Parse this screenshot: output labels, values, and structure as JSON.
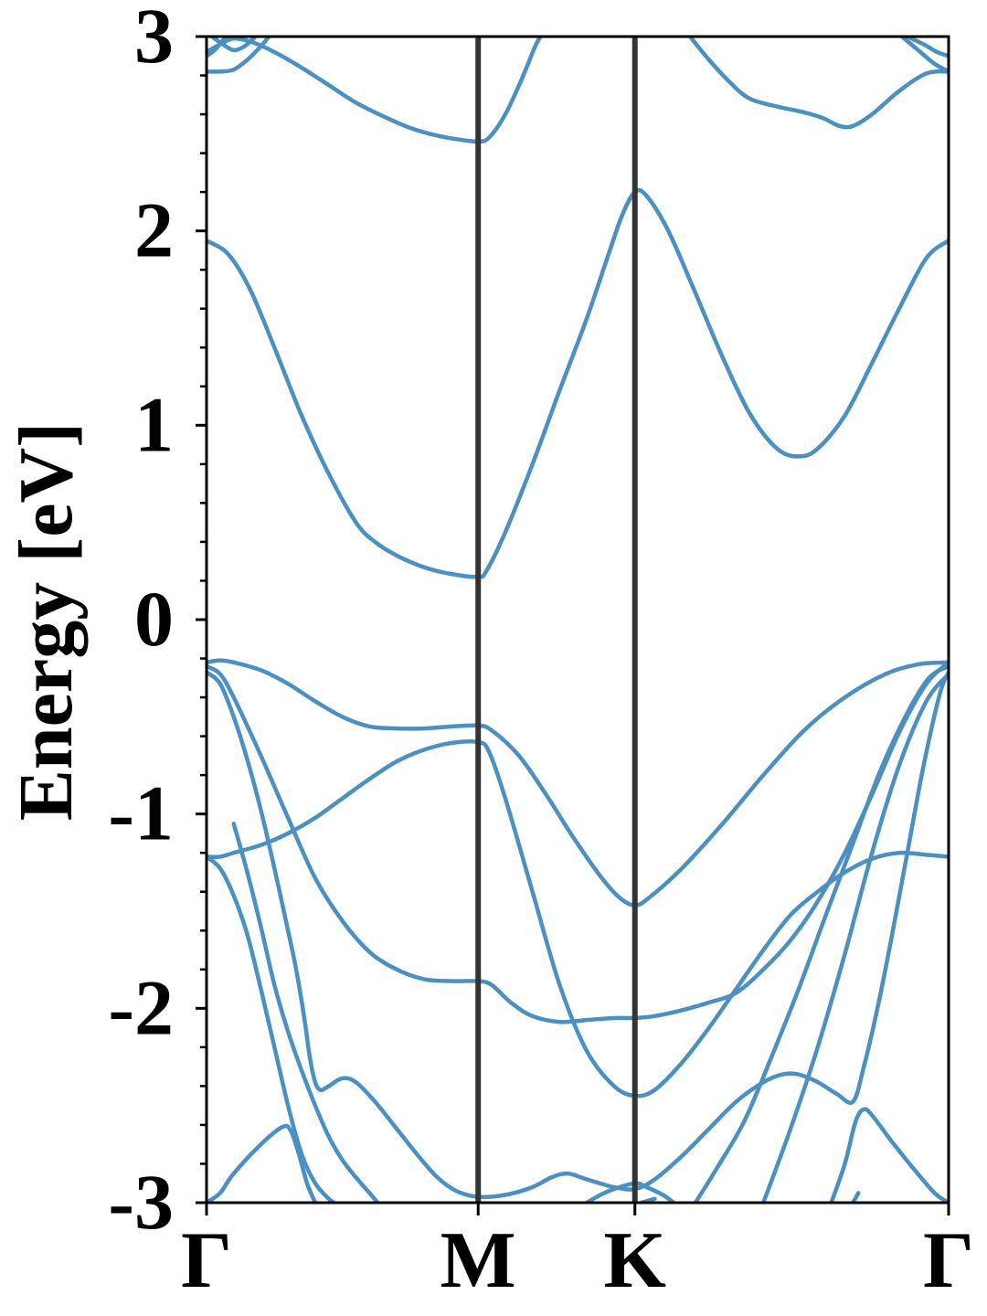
{
  "chart_data": {
    "type": "line",
    "title": "",
    "xlabel": "",
    "ylabel": "Energy [eV]",
    "ylim": [
      -3,
      3
    ],
    "xlim": [
      0,
      2.732
    ],
    "y_ticks": [
      -3,
      -2,
      -1,
      0,
      1,
      2,
      3
    ],
    "y_tick_labels": [
      "-3",
      "-2",
      "-1",
      "0",
      "1",
      "2",
      "3"
    ],
    "y_minor_step": 0.2,
    "grid": false,
    "legend": "none",
    "high_symmetry_points": [
      {
        "label": "Γ",
        "x": 0
      },
      {
        "label": "M",
        "x": 1.0
      },
      {
        "label": "K",
        "x": 1.577
      },
      {
        "label": "Γ",
        "x": 2.732
      }
    ],
    "band_color": "#4a90c2",
    "divider_color": "#333333",
    "series": [
      {
        "values": [
          [
            0,
            1.95
          ],
          [
            0.08,
            1.88
          ],
          [
            0.16,
            1.7
          ],
          [
            0.25,
            1.4
          ],
          [
            0.35,
            1.05
          ],
          [
            0.45,
            0.75
          ],
          [
            0.55,
            0.5
          ],
          [
            0.62,
            0.4
          ],
          [
            0.7,
            0.33
          ],
          [
            0.8,
            0.27
          ],
          [
            0.9,
            0.235
          ],
          [
            1.0,
            0.22
          ],
          [
            1.03,
            0.25
          ],
          [
            1.1,
            0.45
          ],
          [
            1.2,
            0.8
          ],
          [
            1.3,
            1.18
          ],
          [
            1.4,
            1.55
          ],
          [
            1.48,
            1.88
          ],
          [
            1.53,
            2.08
          ],
          [
            1.577,
            2.2
          ],
          [
            1.62,
            2.18
          ],
          [
            1.7,
            2.0
          ],
          [
            1.8,
            1.68
          ],
          [
            1.9,
            1.35
          ],
          [
            2.0,
            1.06
          ],
          [
            2.1,
            0.88
          ],
          [
            2.18,
            0.84
          ],
          [
            2.25,
            0.88
          ],
          [
            2.35,
            1.05
          ],
          [
            2.45,
            1.32
          ],
          [
            2.55,
            1.6
          ],
          [
            2.65,
            1.86
          ],
          [
            2.732,
            1.95
          ]
        ]
      },
      {
        "values": [
          [
            0,
            2.92
          ],
          [
            0.05,
            2.96
          ],
          [
            0.1,
            2.99
          ],
          [
            0.17,
            2.97
          ],
          [
            0.25,
            2.92
          ],
          [
            0.35,
            2.84
          ],
          [
            0.45,
            2.75
          ],
          [
            0.55,
            2.66
          ],
          [
            0.65,
            2.59
          ],
          [
            0.75,
            2.53
          ],
          [
            0.85,
            2.49
          ],
          [
            0.93,
            2.47
          ],
          [
            1.0,
            2.46
          ],
          [
            1.04,
            2.48
          ],
          [
            1.1,
            2.6
          ],
          [
            1.16,
            2.78
          ],
          [
            1.21,
            2.95
          ],
          [
            1.23,
            3.0
          ]
        ]
      },
      {
        "values": [
          [
            0,
            2.82
          ],
          [
            0.05,
            2.82
          ],
          [
            0.1,
            2.83
          ],
          [
            0.15,
            2.88
          ],
          [
            0.2,
            2.95
          ],
          [
            0.23,
            3.0
          ]
        ]
      },
      {
        "values": [
          [
            0.02,
            3.0
          ],
          [
            0.06,
            2.96
          ],
          [
            0.1,
            2.93
          ],
          [
            0.14,
            2.95
          ],
          [
            0.18,
            3.0
          ]
        ]
      },
      {
        "values": [
          [
            0,
            2.9
          ],
          [
            0.03,
            2.93
          ],
          [
            0.06,
            2.98
          ],
          [
            0.08,
            3.0
          ]
        ]
      },
      {
        "values": [
          [
            1.78,
            3.0
          ],
          [
            1.85,
            2.88
          ],
          [
            1.93,
            2.76
          ],
          [
            2.0,
            2.68
          ],
          [
            2.1,
            2.64
          ],
          [
            2.2,
            2.61
          ],
          [
            2.27,
            2.58
          ],
          [
            2.33,
            2.54
          ],
          [
            2.38,
            2.54
          ],
          [
            2.45,
            2.6
          ],
          [
            2.55,
            2.72
          ],
          [
            2.65,
            2.81
          ],
          [
            2.732,
            2.82
          ]
        ]
      },
      {
        "values": [
          [
            2.58,
            3.0
          ],
          [
            2.64,
            2.96
          ],
          [
            2.69,
            2.92
          ],
          [
            2.732,
            2.9
          ]
        ]
      },
      {
        "values": [
          [
            2.56,
            3.0
          ],
          [
            2.62,
            2.93
          ],
          [
            2.68,
            2.86
          ],
          [
            2.732,
            2.82
          ]
        ]
      },
      {
        "values": [
          [
            0,
            -0.22
          ],
          [
            0.05,
            -0.21
          ],
          [
            0.1,
            -0.22
          ],
          [
            0.2,
            -0.26
          ],
          [
            0.3,
            -0.33
          ],
          [
            0.4,
            -0.42
          ],
          [
            0.5,
            -0.5
          ],
          [
            0.6,
            -0.55
          ],
          [
            0.7,
            -0.56
          ],
          [
            0.8,
            -0.56
          ],
          [
            0.9,
            -0.55
          ],
          [
            1.0,
            -0.545
          ],
          [
            1.05,
            -0.57
          ],
          [
            1.15,
            -0.7
          ],
          [
            1.25,
            -0.9
          ],
          [
            1.35,
            -1.12
          ],
          [
            1.45,
            -1.32
          ],
          [
            1.52,
            -1.43
          ],
          [
            1.577,
            -1.47
          ],
          [
            1.63,
            -1.43
          ],
          [
            1.75,
            -1.28
          ],
          [
            1.9,
            -1.05
          ],
          [
            2.05,
            -0.8
          ],
          [
            2.2,
            -0.57
          ],
          [
            2.35,
            -0.4
          ],
          [
            2.5,
            -0.28
          ],
          [
            2.62,
            -0.23
          ],
          [
            2.732,
            -0.22
          ]
        ]
      },
      {
        "values": [
          [
            0,
            -1.22
          ],
          [
            0.05,
            -1.22
          ],
          [
            0.1,
            -1.2
          ],
          [
            0.2,
            -1.16
          ],
          [
            0.3,
            -1.1
          ],
          [
            0.4,
            -1.02
          ],
          [
            0.5,
            -0.92
          ],
          [
            0.6,
            -0.82
          ],
          [
            0.7,
            -0.73
          ],
          [
            0.8,
            -0.67
          ],
          [
            0.9,
            -0.635
          ],
          [
            1.0,
            -0.63
          ],
          [
            1.04,
            -0.68
          ],
          [
            1.1,
            -0.92
          ],
          [
            1.2,
            -1.4
          ],
          [
            1.3,
            -1.88
          ],
          [
            1.4,
            -2.22
          ],
          [
            1.5,
            -2.4
          ],
          [
            1.577,
            -2.45
          ],
          [
            1.65,
            -2.42
          ],
          [
            1.75,
            -2.28
          ],
          [
            1.85,
            -2.1
          ],
          [
            1.95,
            -1.9
          ],
          [
            2.05,
            -1.7
          ],
          [
            2.15,
            -1.52
          ],
          [
            2.25,
            -1.4
          ],
          [
            2.35,
            -1.3
          ],
          [
            2.45,
            -1.23
          ],
          [
            2.55,
            -1.2
          ],
          [
            2.65,
            -1.21
          ],
          [
            2.732,
            -1.22
          ]
        ]
      },
      {
        "values": [
          [
            0,
            -0.24
          ],
          [
            0.05,
            -0.28
          ],
          [
            0.1,
            -0.4
          ],
          [
            0.2,
            -0.7
          ],
          [
            0.3,
            -1.02
          ],
          [
            0.4,
            -1.33
          ],
          [
            0.5,
            -1.55
          ],
          [
            0.6,
            -1.71
          ],
          [
            0.7,
            -1.8
          ],
          [
            0.8,
            -1.85
          ],
          [
            0.9,
            -1.86
          ],
          [
            1.0,
            -1.86
          ],
          [
            1.05,
            -1.88
          ],
          [
            1.12,
            -1.97
          ],
          [
            1.2,
            -2.04
          ],
          [
            1.3,
            -2.07
          ],
          [
            1.4,
            -2.06
          ],
          [
            1.5,
            -2.05
          ],
          [
            1.577,
            -2.05
          ],
          [
            1.65,
            -2.04
          ],
          [
            1.75,
            -2.01
          ],
          [
            1.85,
            -1.97
          ],
          [
            1.95,
            -1.92
          ],
          [
            2.05,
            -1.8
          ],
          [
            2.15,
            -1.65
          ],
          [
            2.25,
            -1.45
          ],
          [
            2.35,
            -1.2
          ],
          [
            2.45,
            -0.9
          ],
          [
            2.55,
            -0.58
          ],
          [
            2.65,
            -0.33
          ],
          [
            2.732,
            -0.22
          ]
        ]
      },
      {
        "values": [
          [
            0,
            -0.27
          ],
          [
            0.05,
            -0.33
          ],
          [
            0.1,
            -0.5
          ],
          [
            0.15,
            -0.72
          ],
          [
            0.2,
            -0.98
          ],
          [
            0.25,
            -1.28
          ],
          [
            0.3,
            -1.6
          ],
          [
            0.33,
            -1.8
          ],
          [
            0.36,
            -2.05
          ],
          [
            0.38,
            -2.25
          ],
          [
            0.4,
            -2.38
          ],
          [
            0.42,
            -2.42
          ],
          [
            0.45,
            -2.4
          ],
          [
            0.5,
            -2.36
          ],
          [
            0.55,
            -2.38
          ],
          [
            0.62,
            -2.48
          ],
          [
            0.7,
            -2.62
          ],
          [
            0.78,
            -2.76
          ],
          [
            0.85,
            -2.87
          ],
          [
            0.92,
            -2.94
          ],
          [
            1.0,
            -2.97
          ],
          [
            1.1,
            -2.96
          ],
          [
            1.2,
            -2.92
          ],
          [
            1.27,
            -2.87
          ],
          [
            1.33,
            -2.85
          ],
          [
            1.4,
            -2.88
          ],
          [
            1.5,
            -2.92
          ],
          [
            1.577,
            -2.93
          ],
          [
            1.65,
            -2.88
          ],
          [
            1.75,
            -2.76
          ],
          [
            1.85,
            -2.62
          ],
          [
            1.95,
            -2.48
          ],
          [
            2.05,
            -2.38
          ],
          [
            2.12,
            -2.34
          ],
          [
            2.18,
            -2.34
          ],
          [
            2.25,
            -2.38
          ],
          [
            2.32,
            -2.44
          ],
          [
            2.38,
            -2.48
          ],
          [
            2.42,
            -2.3
          ],
          [
            2.47,
            -2.0
          ],
          [
            2.52,
            -1.65
          ],
          [
            2.58,
            -1.2
          ],
          [
            2.64,
            -0.75
          ],
          [
            2.7,
            -0.38
          ],
          [
            2.732,
            -0.27
          ]
        ]
      },
      {
        "values": [
          [
            0,
            -1.22
          ],
          [
            0.05,
            -1.28
          ],
          [
            0.1,
            -1.42
          ],
          [
            0.15,
            -1.62
          ],
          [
            0.2,
            -1.9
          ],
          [
            0.25,
            -2.2
          ],
          [
            0.3,
            -2.5
          ],
          [
            0.35,
            -2.75
          ],
          [
            0.4,
            -2.9
          ],
          [
            0.45,
            -2.98
          ],
          [
            0.47,
            -3.0
          ]
        ]
      },
      {
        "values": [
          [
            0.1,
            -1.05
          ],
          [
            0.15,
            -1.3
          ],
          [
            0.2,
            -1.58
          ],
          [
            0.25,
            -1.88
          ],
          [
            0.3,
            -2.12
          ],
          [
            0.35,
            -2.32
          ],
          [
            0.4,
            -2.5
          ],
          [
            0.45,
            -2.66
          ],
          [
            0.5,
            -2.78
          ],
          [
            0.55,
            -2.87
          ],
          [
            0.6,
            -2.95
          ],
          [
            0.63,
            -3.0
          ]
        ]
      },
      {
        "values": [
          [
            0,
            -3.0
          ],
          [
            0.05,
            -2.95
          ],
          [
            0.1,
            -2.85
          ],
          [
            0.2,
            -2.7
          ],
          [
            0.28,
            -2.61
          ],
          [
            0.31,
            -2.63
          ],
          [
            0.34,
            -2.75
          ],
          [
            0.37,
            -2.9
          ],
          [
            0.4,
            -3.0
          ]
        ]
      },
      {
        "values": [
          [
            1.4,
            -3.0
          ],
          [
            1.45,
            -2.96
          ],
          [
            1.5,
            -2.93
          ],
          [
            1.577,
            -2.9
          ],
          [
            1.62,
            -2.92
          ],
          [
            1.68,
            -2.96
          ],
          [
            1.72,
            -3.0
          ]
        ]
      },
      {
        "values": [
          [
            1.6,
            -3.0
          ],
          [
            1.65,
            -2.98
          ]
        ]
      },
      {
        "values": [
          [
            1.8,
            -3.0
          ],
          [
            1.88,
            -2.82
          ],
          [
            1.98,
            -2.58
          ],
          [
            2.08,
            -2.25
          ],
          [
            2.18,
            -1.9
          ],
          [
            2.28,
            -1.52
          ],
          [
            2.38,
            -1.15
          ],
          [
            2.48,
            -0.78
          ],
          [
            2.58,
            -0.48
          ],
          [
            2.66,
            -0.3
          ],
          [
            2.732,
            -0.24
          ]
        ]
      },
      {
        "values": [
          [
            2.05,
            -3.0
          ],
          [
            2.15,
            -2.62
          ],
          [
            2.25,
            -2.2
          ],
          [
            2.35,
            -1.72
          ],
          [
            2.45,
            -1.2
          ],
          [
            2.55,
            -0.75
          ],
          [
            2.65,
            -0.42
          ],
          [
            2.732,
            -0.28
          ]
        ]
      },
      {
        "values": [
          [
            2.3,
            -3.0
          ],
          [
            2.35,
            -2.8
          ],
          [
            2.39,
            -2.58
          ],
          [
            2.42,
            -2.52
          ],
          [
            2.45,
            -2.55
          ],
          [
            2.52,
            -2.68
          ],
          [
            2.6,
            -2.82
          ],
          [
            2.68,
            -2.95
          ],
          [
            2.732,
            -3.0
          ]
        ]
      },
      {
        "values": [
          [
            2.38,
            -3.0
          ],
          [
            2.4,
            -2.95
          ]
        ]
      }
    ]
  }
}
